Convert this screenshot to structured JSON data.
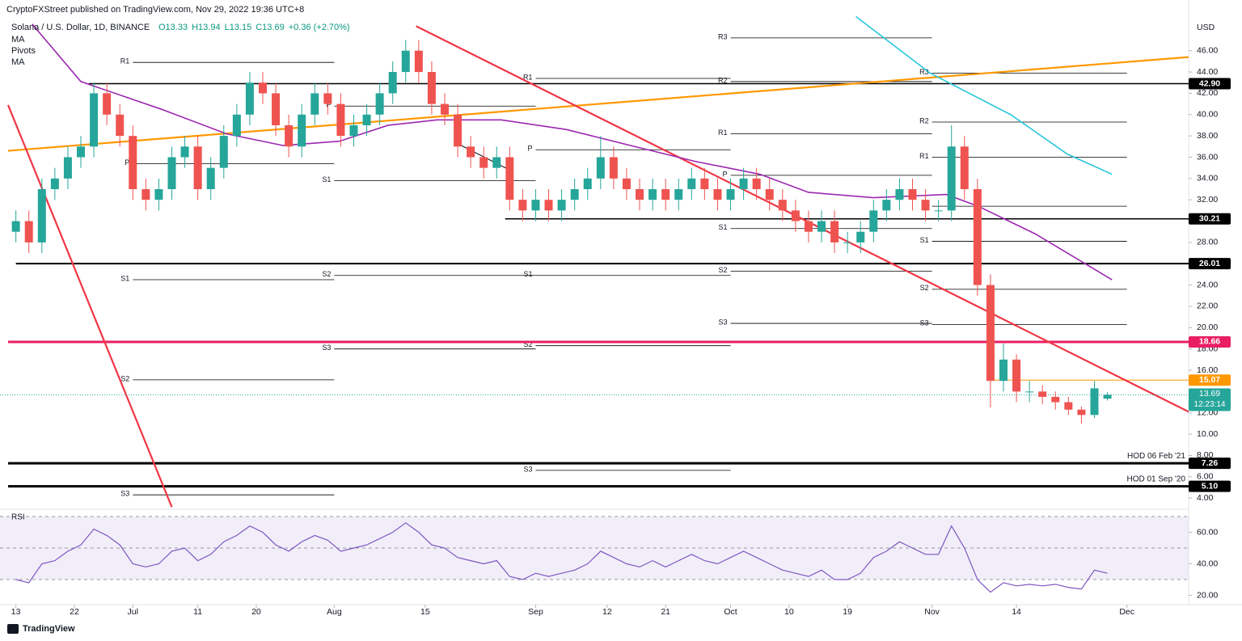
{
  "chart_data": {
    "type": "candlestick",
    "publisher": "CryptoFXStreet published on TradingView.com, Nov 29, 2022 19:36 UTC+8",
    "title": "Solana / U.S. Dollar, 1D, BINANCE",
    "ohlc_labels": [
      "O13.33",
      "H13.94",
      "L13.15",
      "C13.69"
    ],
    "change": "+0.36 (+2.70%)",
    "indicators": [
      "MA",
      "Pivots",
      "MA"
    ],
    "currency": "USD",
    "brand": "TradingView",
    "up_color": "#26a69a",
    "down_color": "#ef5350",
    "x": [
      0,
      2,
      4,
      6,
      8,
      10,
      12,
      14,
      16,
      18,
      20,
      22,
      24,
      26,
      28,
      30,
      32,
      34,
      36,
      38,
      40,
      42,
      44,
      46,
      48,
      50,
      52,
      54,
      56,
      58,
      60,
      62,
      64,
      66,
      68,
      70,
      72,
      74,
      76,
      78,
      80,
      82,
      84,
      86,
      88,
      90,
      92,
      94,
      96,
      98,
      100,
      102,
      104,
      106,
      108,
      110,
      112,
      114,
      116,
      118,
      120,
      122,
      124,
      126,
      128,
      130,
      132,
      134,
      136,
      138,
      140,
      142,
      144,
      146,
      148,
      150,
      152,
      154,
      156,
      158,
      160,
      162,
      164,
      166,
      168
    ],
    "open": [
      29,
      30,
      28,
      33,
      34,
      36,
      37,
      42,
      40,
      38,
      33,
      32,
      33,
      36,
      37,
      33,
      35,
      38,
      40,
      43,
      42,
      39,
      37,
      40,
      42,
      41,
      38,
      39,
      40,
      42,
      44,
      46,
      44,
      41,
      40,
      37,
      36,
      35,
      36,
      32,
      31,
      32,
      31,
      32,
      33,
      34,
      36,
      34,
      33,
      32,
      33,
      32,
      33,
      34,
      33,
      32,
      33,
      34,
      33,
      32,
      31,
      30,
      29,
      30,
      28,
      28,
      29,
      31,
      32,
      33,
      32,
      31,
      31,
      37,
      33,
      24,
      15,
      17,
      14,
      14,
      13.5,
      13,
      12.3,
      11.8,
      13.33
    ],
    "high": [
      31,
      31,
      34,
      35,
      37,
      38,
      43,
      43,
      41,
      39,
      34,
      34,
      37,
      38,
      38,
      36,
      39,
      41,
      44,
      44,
      43,
      40,
      41,
      43,
      43,
      42,
      40,
      41,
      43,
      45,
      47,
      47,
      45,
      42,
      41,
      38,
      37,
      37,
      37,
      33,
      33,
      33,
      33,
      34,
      35,
      38,
      37,
      35,
      34,
      34,
      34,
      34,
      35,
      35,
      34,
      34,
      35,
      35,
      34,
      33,
      32,
      31,
      31,
      31,
      29,
      30,
      32,
      33,
      34,
      34,
      33,
      32,
      39,
      38,
      34,
      25,
      18.5,
      17.5,
      15,
      14.6,
      14,
      13.5,
      12.6,
      15,
      13.94
    ],
    "low": [
      28,
      27,
      27,
      32,
      33,
      35,
      36,
      39,
      37,
      32,
      31,
      31,
      32,
      35,
      32,
      32,
      34,
      37,
      39,
      41,
      38,
      36,
      36,
      39,
      40,
      37,
      37,
      38,
      39,
      41,
      43,
      43,
      40,
      39,
      36,
      35,
      34,
      34,
      31,
      30,
      30,
      30,
      30,
      31,
      32,
      33,
      33,
      32,
      31,
      31,
      31,
      31,
      32,
      32,
      31,
      31,
      32,
      32,
      31,
      30,
      29,
      28,
      28,
      27,
      27,
      27,
      28,
      30,
      31,
      31,
      30,
      30,
      30,
      32,
      23,
      12.5,
      14,
      13,
      13,
      12.8,
      12.3,
      11.8,
      11,
      11.5,
      13.15
    ],
    "close": [
      30,
      28,
      33,
      34,
      36,
      37,
      42,
      40,
      38,
      33,
      32,
      33,
      36,
      37,
      33,
      35,
      38,
      40,
      43,
      42,
      39,
      37,
      40,
      42,
      41,
      38,
      39,
      40,
      42,
      44,
      46,
      44,
      41,
      40,
      37,
      36,
      35,
      36,
      32,
      31,
      32,
      31,
      32,
      33,
      34,
      36,
      34,
      33,
      32,
      33,
      32,
      33,
      34,
      33,
      32,
      33,
      34,
      33,
      32,
      31,
      30,
      29,
      30,
      28,
      28,
      29,
      31,
      32,
      33,
      32,
      31,
      31,
      37,
      33,
      24,
      15,
      17,
      14,
      14,
      13.5,
      13,
      12.3,
      11.8,
      14.3,
      13.69
    ],
    "xlim": [
      -1.2,
      180.5
    ],
    "xticks": [
      {
        "value": 0,
        "label": "13"
      },
      {
        "value": 9,
        "label": "22"
      },
      {
        "value": 18,
        "label": "Jul"
      },
      {
        "value": 28,
        "label": "11"
      },
      {
        "value": 37,
        "label": "20"
      },
      {
        "value": 49,
        "label": "Aug"
      },
      {
        "value": 63,
        "label": "15"
      },
      {
        "value": 80,
        "label": "Sep"
      },
      {
        "value": 91,
        "label": "12"
      },
      {
        "value": 100,
        "label": "21"
      },
      {
        "value": 110,
        "label": "Oct"
      },
      {
        "value": 119,
        "label": "10"
      },
      {
        "value": 128,
        "label": "19"
      },
      {
        "value": 141,
        "label": "Nov"
      },
      {
        "value": 154,
        "label": "14"
      },
      {
        "value": 171,
        "label": "Dec"
      }
    ],
    "ylim": [
      3.1,
      50
    ],
    "yticks": [
      {
        "value": 46,
        "label": "46.00"
      },
      {
        "value": 44,
        "label": "44.00"
      },
      {
        "value": 42,
        "label": "42.00"
      },
      {
        "value": 40,
        "label": "40.00"
      },
      {
        "value": 38,
        "label": "38.00"
      },
      {
        "value": 36,
        "label": "36.00"
      },
      {
        "value": 34,
        "label": "34.00"
      },
      {
        "value": 32,
        "label": "32.00"
      },
      {
        "value": 28,
        "label": "28.00"
      },
      {
        "value": 24,
        "label": "24.00"
      },
      {
        "value": 22,
        "label": "22.00"
      },
      {
        "value": 20,
        "label": "20.00"
      },
      {
        "value": 18,
        "label": "18.00"
      },
      {
        "value": 16,
        "label": "16.00"
      },
      {
        "value": 12,
        "label": "12.00"
      },
      {
        "value": 10,
        "label": "10.00"
      },
      {
        "value": 8,
        "label": "8.00"
      },
      {
        "value": 6,
        "label": "6.00"
      },
      {
        "value": 4,
        "label": "4.00"
      }
    ],
    "levels": [
      {
        "value": 42.9,
        "label": "42.90",
        "color": "#000000",
        "width": 1.5,
        "from": 11.2
      },
      {
        "value": 30.21,
        "label": "30.21",
        "color": "#000000",
        "width": 1.5,
        "from": 75.3
      },
      {
        "value": 26.01,
        "label": "26.01",
        "color": "#000000",
        "width": 2,
        "from": 0
      },
      {
        "value": 18.66,
        "label": "18.66",
        "color": "#e91e63",
        "width": 3
      },
      {
        "value": 15.07,
        "label": "15.07",
        "color": "#ff9800",
        "width": 1,
        "from": 150
      },
      {
        "value": 7.26,
        "label": "7.26",
        "color": "#000000",
        "width": 3,
        "text": "HOD 06 Feb '21"
      },
      {
        "value": 5.1,
        "label": "5.10",
        "color": "#000000",
        "width": 3,
        "text": "HOD 01 Sep '20"
      }
    ],
    "current": {
      "value": 13.69,
      "label": "13.69",
      "countdown": "12:23:14",
      "color": "#26a69a"
    },
    "pivots": [
      {
        "start": 18,
        "end": 49,
        "levels": [
          {
            "name": "R1",
            "value": 44.9
          },
          {
            "name": "P",
            "value": 35.4
          },
          {
            "name": "S1",
            "value": 24.5
          },
          {
            "name": "S2",
            "value": 15.1
          },
          {
            "name": "S3",
            "value": 4.3
          }
        ]
      },
      {
        "start": 49,
        "end": 80,
        "levels": [
          {
            "name": "P",
            "value": 40.8
          },
          {
            "name": "S1",
            "value": 33.8
          },
          {
            "name": "S2",
            "value": 24.9
          },
          {
            "name": "S3",
            "value": 18.0
          }
        ]
      },
      {
        "start": 80,
        "end": 110,
        "levels": [
          {
            "name": "R1",
            "value": 43.4
          },
          {
            "name": "P",
            "value": 36.7
          },
          {
            "name": "S1",
            "value": 24.9
          },
          {
            "name": "S2",
            "value": 18.3
          },
          {
            "name": "S3",
            "value": 6.6
          }
        ]
      },
      {
        "start": 110,
        "end": 141,
        "levels": [
          {
            "name": "R3",
            "value": 47.2
          },
          {
            "name": "R2",
            "value": 43.1
          },
          {
            "name": "R1",
            "value": 38.2
          },
          {
            "name": "P",
            "value": 34.3
          },
          {
            "name": "S1",
            "value": 29.3
          },
          {
            "name": "S2",
            "value": 25.3
          },
          {
            "name": "S3",
            "value": 20.4
          }
        ]
      },
      {
        "start": 141,
        "end": 171,
        "levels": [
          {
            "name": "R3",
            "value": 43.9
          },
          {
            "name": "R2",
            "value": 39.3
          },
          {
            "name": "R1",
            "value": 36.0
          },
          {
            "name": "P",
            "value": 31.4
          },
          {
            "name": "S1",
            "value": 28.1
          },
          {
            "name": "S2",
            "value": 23.6
          },
          {
            "name": "S3",
            "value": 20.3
          }
        ]
      }
    ],
    "trendlines": [
      {
        "color": "#ff9800",
        "x": [
          -1.2,
          180.5
        ],
        "values": [
          36.6,
          45.4
        ]
      },
      {
        "color": "#f23645",
        "x": [
          61.6,
          180.5
        ],
        "values": [
          48.3,
          12.1
        ]
      },
      {
        "color": "#f23645",
        "x": [
          -1.2,
          24
        ],
        "values": [
          40.9,
          3.15
        ]
      },
      {
        "color": "#000000",
        "x": [
          67.9,
          76
        ],
        "values": [
          37.3,
          34.8
        ]
      }
    ],
    "ma": [
      {
        "color": "#9c27b0",
        "x": [
          2.5,
          10,
          22.4,
          32.4,
          41.1,
          49.8,
          57.3,
          64.8,
          74.7,
          84.7,
          94.6,
          104.6,
          114.5,
          122,
          132,
          143.2,
          148.1,
          156.9,
          168.7
        ],
        "values": [
          48.5,
          43.1,
          40.5,
          38.2,
          37.1,
          37.5,
          39,
          39.5,
          39.5,
          38.6,
          37.1,
          35.6,
          34.4,
          32.7,
          32.2,
          32.5,
          31.4,
          28.8,
          24.5
        ]
      },
      {
        "color": "#26c6da",
        "x": [
          129.3,
          140.7,
          153.1,
          161.8,
          168.7
        ],
        "values": [
          49.2,
          43.9,
          40,
          36.3,
          34.4
        ]
      }
    ],
    "rsi": {
      "title": "RSI",
      "color": "#7e57c2",
      "values": [
        30,
        28,
        40,
        42,
        48,
        52,
        62,
        58,
        52,
        40,
        38,
        40,
        48,
        50,
        42,
        46,
        54,
        58,
        64,
        60,
        52,
        48,
        54,
        58,
        55,
        48,
        50,
        52,
        56,
        60,
        66,
        60,
        52,
        50,
        44,
        42,
        40,
        42,
        32,
        30,
        34,
        32,
        34,
        36,
        40,
        48,
        44,
        40,
        38,
        42,
        38,
        42,
        46,
        42,
        40,
        44,
        48,
        44,
        40,
        36,
        34,
        32,
        36,
        30,
        30,
        34,
        44,
        48,
        54,
        50,
        46,
        46,
        64,
        50,
        30,
        22,
        28,
        26,
        27,
        26,
        27,
        25,
        24,
        36,
        34
      ],
      "ylim": [
        14.1,
        73.6
      ],
      "yticks": [
        {
          "value": 60,
          "label": "60.00"
        },
        {
          "value": 40,
          "label": "40.00"
        },
        {
          "value": 20,
          "label": "20.00"
        }
      ],
      "bands": [
        70,
        50,
        30
      ]
    }
  }
}
